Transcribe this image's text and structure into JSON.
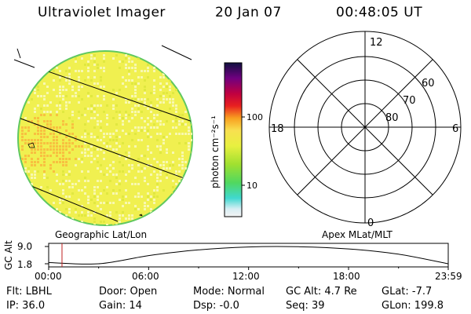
{
  "header": {
    "instrument": "Ultraviolet Imager",
    "date": "20 Jan 07",
    "time": "00:48:05 UT"
  },
  "colorbar": {
    "unit_label": "photon cm⁻²s⁻¹",
    "ticks": [
      "100",
      "10"
    ]
  },
  "polar_plot": {
    "mlt_labels": [
      "12",
      "18",
      "6",
      "0"
    ],
    "lat_labels": [
      "60",
      "70",
      "80"
    ]
  },
  "coordinate_labels": {
    "left": "Geographic Lat/Lon",
    "right": "Apex MLat/MLT"
  },
  "altitude_panel": {
    "ylabel": "GC Alt",
    "ytick_top": "9.0",
    "ytick_bottom": "1.8",
    "time_ticks": [
      "00:00",
      "06:00",
      "12:00",
      "18:00",
      "23:59"
    ]
  },
  "info": {
    "filter": "Flt: LBHL",
    "ip": "IP: 36.0",
    "door": "Door: Open",
    "gain": "Gain: 14",
    "mode": "Mode: Normal",
    "dsp": "Dsp:  -0.0",
    "gc_alt": "GC Alt: 4.7 Re",
    "seq": "Seq: 39",
    "glat": "GLat:  -7.7",
    "glon": "GLon: 199.8"
  },
  "chart_data": [
    {
      "type": "heatmap",
      "title": "Ultraviolet Imager",
      "xlabel": "Geographic Lat/Lon",
      "colorbar_label": "photon cm-2s-1",
      "colorbar_ticks": [
        10,
        100
      ],
      "scale": "log",
      "colors": {
        "dominant": "#f0f050",
        "limb": "#60d060",
        "bright_region": "#f8c040"
      }
    },
    {
      "type": "line",
      "ylabel": "GC Alt",
      "yticks": [
        1.8,
        9.0
      ],
      "x": [
        "00:00",
        "03:00",
        "06:00",
        "09:00",
        "12:00",
        "15:00",
        "18:00",
        "21:00",
        "23:59"
      ],
      "y": [
        2.3,
        1.8,
        5.2,
        7.6,
        8.8,
        8.9,
        8.0,
        5.8,
        1.8
      ],
      "marker_time": "00:48"
    }
  ]
}
